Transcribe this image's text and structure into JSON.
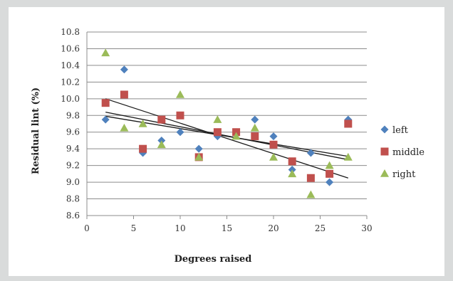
{
  "chart_data": {
    "type": "scatter",
    "title": "",
    "xlabel": "Degrees raised",
    "ylabel": "Residual lint (%)",
    "xlim": [
      0,
      30
    ],
    "ylim": [
      8.6,
      10.8
    ],
    "x_ticks": [
      "0",
      "5",
      "10",
      "15",
      "20",
      "25",
      "30"
    ],
    "y_ticks": [
      "8.6",
      "8.8",
      "9.0",
      "9.2",
      "9.4",
      "9.6",
      "9.8",
      "10.0",
      "10.2",
      "10.4",
      "10.6",
      "10.8"
    ],
    "grid": "horizontal",
    "legend_position": "right",
    "series": [
      {
        "name": "left",
        "marker": "diamond",
        "color": "#4f81bd",
        "points": [
          [
            2,
            9.75
          ],
          [
            4,
            10.35
          ],
          [
            6,
            9.35
          ],
          [
            8,
            9.5
          ],
          [
            10,
            9.6
          ],
          [
            12,
            9.4
          ],
          [
            14,
            9.55
          ],
          [
            16,
            9.6
          ],
          [
            18,
            9.75
          ],
          [
            20,
            9.55
          ],
          [
            22,
            9.15
          ],
          [
            24,
            9.35
          ],
          [
            26,
            9.0
          ],
          [
            28,
            9.75
          ]
        ],
        "trendline": [
          [
            2,
            9.84
          ],
          [
            28,
            9.27
          ]
        ]
      },
      {
        "name": "middle",
        "marker": "square",
        "color": "#c0504d",
        "points": [
          [
            2,
            9.95
          ],
          [
            4,
            10.05
          ],
          [
            6,
            9.4
          ],
          [
            8,
            9.75
          ],
          [
            10,
            9.8
          ],
          [
            12,
            9.3
          ],
          [
            14,
            9.6
          ],
          [
            16,
            9.6
          ],
          [
            18,
            9.55
          ],
          [
            20,
            9.45
          ],
          [
            22,
            9.25
          ],
          [
            24,
            9.05
          ],
          [
            26,
            9.1
          ],
          [
            28,
            9.7
          ]
        ],
        "trendline": [
          [
            2,
            9.79
          ],
          [
            28,
            9.31
          ]
        ]
      },
      {
        "name": "right",
        "marker": "triangle",
        "color": "#9bbb59",
        "points": [
          [
            2,
            10.55
          ],
          [
            4,
            9.65
          ],
          [
            6,
            9.7
          ],
          [
            8,
            9.45
          ],
          [
            10,
            10.05
          ],
          [
            12,
            9.3
          ],
          [
            14,
            9.75
          ],
          [
            16,
            9.55
          ],
          [
            18,
            9.65
          ],
          [
            20,
            9.3
          ],
          [
            22,
            9.1
          ],
          [
            24,
            8.85
          ],
          [
            26,
            9.2
          ],
          [
            28,
            9.3
          ]
        ],
        "trendline": [
          [
            2,
            10.0
          ],
          [
            28,
            9.05
          ]
        ]
      }
    ],
    "trendline_color": "#1a1a1a"
  }
}
